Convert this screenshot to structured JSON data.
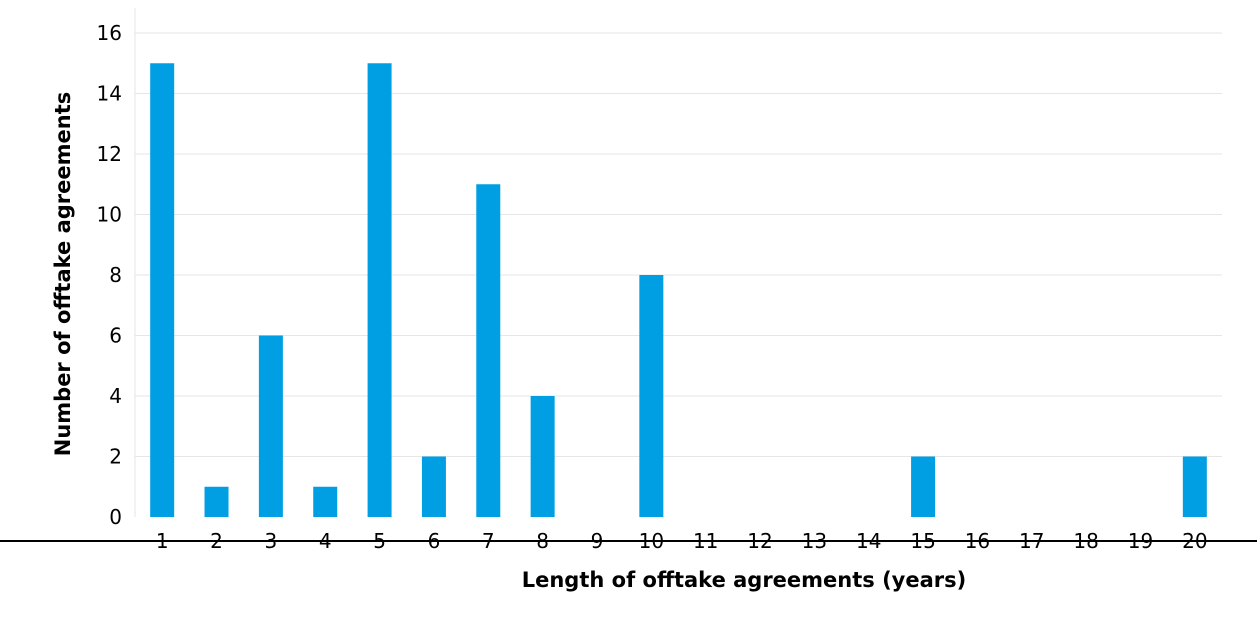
{
  "chart_data": {
    "type": "bar",
    "title": "",
    "xlabel": "Length of offtake agreements (years)",
    "ylabel": "Number of offtake agreements",
    "categories": [
      "1",
      "2",
      "3",
      "4",
      "5",
      "6",
      "7",
      "8",
      "9",
      "10",
      "11",
      "12",
      "13",
      "14",
      "15",
      "16",
      "17",
      "18",
      "19",
      "20"
    ],
    "values": [
      15,
      1,
      6,
      1,
      15,
      2,
      11,
      4,
      0,
      8,
      0,
      0,
      0,
      0,
      2,
      0,
      0,
      0,
      0,
      2
    ],
    "ylim": [
      0,
      16
    ],
    "yticks": [
      "0",
      "2",
      "4",
      "6",
      "8",
      "10",
      "12",
      "14",
      "16"
    ],
    "grid": true,
    "bar_color": "#009fe3",
    "grid_color": "#e6e6e6",
    "axis_color": "#000000"
  }
}
